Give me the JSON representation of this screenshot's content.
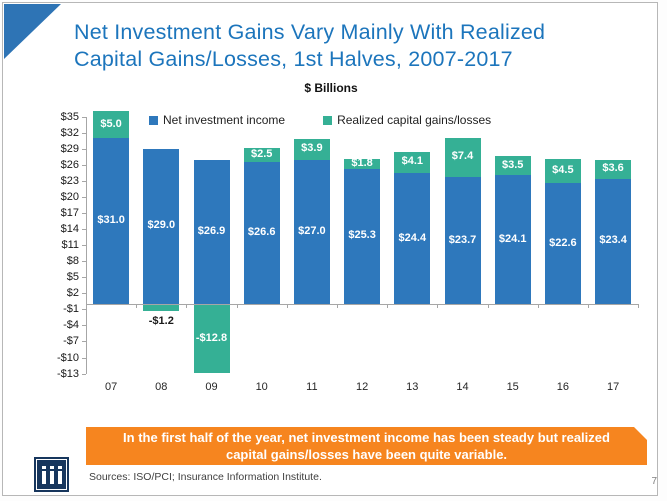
{
  "slide": {
    "title_line1": "Net Investment Gains Vary Mainly With Realized",
    "title_line2": "Capital Gains/Losses, 1st Halves, 2007-2017",
    "units_label": "$ Billions",
    "callout": "In the first half of the year, net investment income has been steady but realized capital gains/losses have been quite variable.",
    "sources": "Sources: ISO/PCI;  Insurance Information Institute.",
    "page_number": "7",
    "logo": "iii"
  },
  "colors": {
    "title_blue": "#1C75BC",
    "corner_triangle": "#2E74B5",
    "bar_blue": "#2E78BC",
    "bar_green": "#35B095",
    "banner_orange": "#F6851F",
    "logo_navy": "#17365D",
    "axis_gray": "#A6A6A6"
  },
  "chart_data": {
    "type": "bar",
    "subtype": "stacked-column",
    "title": "$ Billions",
    "categories": [
      "07",
      "08",
      "09",
      "10",
      "11",
      "12",
      "13",
      "14",
      "15",
      "16",
      "17"
    ],
    "series": [
      {
        "name": "Net investment income",
        "color": "#2E78BC",
        "values": [
          31.0,
          29.0,
          26.9,
          26.6,
          27.0,
          25.3,
          24.4,
          23.7,
          24.1,
          22.6,
          23.4
        ],
        "value_labels": [
          "$31.0",
          "$29.0",
          "$26.9",
          "$26.6",
          "$27.0",
          "$25.3",
          "$24.4",
          "$23.7",
          "$24.1",
          "$22.6",
          "$23.4"
        ]
      },
      {
        "name": "Realized capital gains/losses",
        "color": "#35B095",
        "values": [
          5.0,
          -1.2,
          -12.8,
          2.5,
          3.9,
          1.8,
          4.1,
          7.4,
          3.5,
          4.5,
          3.6
        ],
        "value_labels": [
          "$5.0",
          "-$1.2",
          "-$12.8",
          "$2.5",
          "$3.9",
          "$1.8",
          "$4.1",
          "$7.4",
          "$3.5",
          "$4.5",
          "$3.6"
        ]
      }
    ],
    "ylim": [
      -13,
      35
    ],
    "y_tick_step": 3,
    "y_tick_labels": [
      "$35",
      "$32",
      "$29",
      "$26",
      "$23",
      "$20",
      "$17",
      "$14",
      "$11",
      "$8",
      "$5",
      "$2",
      "-$1",
      "-$4",
      "-$7",
      "-$10",
      "-$13"
    ],
    "legend_position": "top",
    "gridlines": false
  }
}
